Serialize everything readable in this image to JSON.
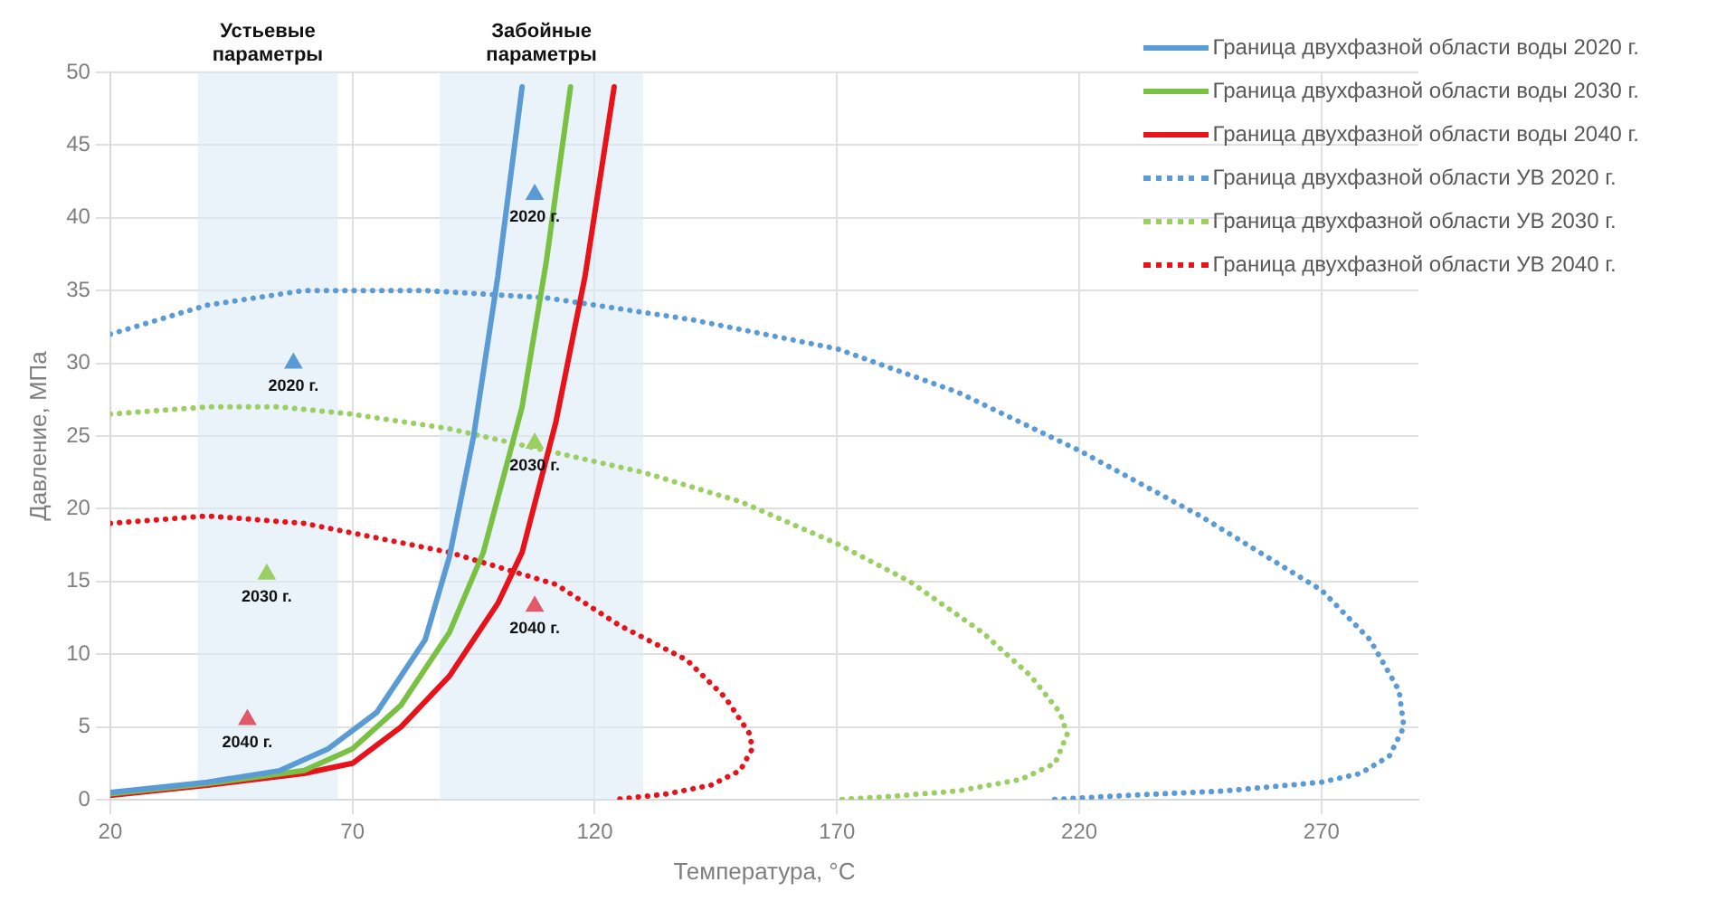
{
  "chart_data": {
    "type": "line",
    "xlabel": "Температура, °С",
    "ylabel": "Давление, МПа",
    "xlim": [
      20,
      290
    ],
    "xticks": [
      20,
      70,
      120,
      170,
      220,
      270
    ],
    "ylim": [
      0,
      50
    ],
    "yticks": [
      0,
      5,
      10,
      15,
      20,
      25,
      30,
      35,
      40,
      45,
      50
    ],
    "grid": true,
    "legend": "top right",
    "bands": [
      {
        "axis": "x",
        "from": 38,
        "to": 67,
        "label": "Устьевые параметры",
        "color": "#deebf7"
      },
      {
        "axis": "x",
        "from": 88,
        "to": 130,
        "label": "Забойные параметры",
        "color": "#deebf7"
      }
    ],
    "series": [
      {
        "name": "Граница двухфазной области воды 2020 г.",
        "color": "#5b9bd5",
        "line_style": "solid",
        "x": [
          20,
          40,
          55,
          65,
          75,
          85,
          90,
          95,
          100,
          105
        ],
        "values": [
          0.5,
          1.2,
          2,
          3.5,
          6,
          11,
          16.7,
          25,
          36,
          49
        ]
      },
      {
        "name": "Граница двухфазной области воды 2030 г.",
        "color": "#7ac143",
        "line_style": "solid",
        "x": [
          20,
          40,
          60,
          70,
          80,
          90,
          97,
          105,
          110,
          115
        ],
        "values": [
          0.4,
          1.1,
          2,
          3.5,
          6.5,
          11.5,
          17,
          27,
          37,
          49
        ]
      },
      {
        "name": "Граница двухфазной области воды 2040 г.",
        "color": "#e8121b",
        "line_style": "solid",
        "x": [
          20,
          40,
          60,
          70,
          80,
          90,
          100,
          105,
          112,
          118,
          124
        ],
        "values": [
          0.3,
          1,
          1.8,
          2.5,
          5,
          8.5,
          13.5,
          17,
          26,
          36,
          49
        ]
      },
      {
        "name": "Граница двухфазной области УВ 2020 г.",
        "color": "#5b9bd5",
        "line_style": "dotted",
        "x": [
          20,
          40,
          60,
          85,
          110,
          140,
          170,
          195,
          220,
          245,
          270,
          280,
          286,
          287,
          284,
          278,
          270,
          250,
          230,
          214
        ],
        "values": [
          32,
          34,
          35,
          35,
          34.5,
          33,
          31,
          28,
          24,
          19.5,
          14.4,
          11,
          7.5,
          5,
          3,
          1.8,
          1.2,
          0.6,
          0.3,
          0
        ]
      },
      {
        "name": "Граница двухфазной области УВ 2030 г.",
        "color": "#9bcf63",
        "line_style": "dotted",
        "x": [
          20,
          40,
          55,
          70,
          90,
          110,
          130,
          150,
          170,
          185,
          200,
          210,
          216,
          217.5,
          215,
          208,
          195,
          180,
          170
        ],
        "values": [
          26.5,
          27,
          27,
          26.5,
          25.5,
          24,
          22.5,
          20.5,
          17.6,
          15,
          11.5,
          8.5,
          6,
          4.5,
          2.5,
          1.4,
          0.6,
          0.2,
          0
        ]
      },
      {
        "name": "Граница двухфазной области УВ 2040 г.",
        "color": "#e8121b",
        "line_style": "dotted",
        "x": [
          20,
          40,
          60,
          75,
          90,
          100,
          112,
          125,
          139,
          147,
          152,
          152.5,
          150,
          144,
          135,
          124
        ],
        "values": [
          19,
          19.5,
          19,
          18,
          17,
          16,
          14.8,
          12,
          9.6,
          7,
          4.5,
          3.5,
          2,
          1,
          0.4,
          0
        ]
      },
      {
        "type": "scatter",
        "color": "#5b9bd5",
        "marker": "triangle",
        "x": [
          57.8,
          107.6
        ],
        "values": [
          30,
          41.6
        ]
      },
      {
        "type": "scatter",
        "color": "#9bcf63",
        "marker": "triangle",
        "x": [
          52.3,
          107.6
        ],
        "values": [
          15.5,
          24.5
        ]
      },
      {
        "type": "scatter",
        "color": "#e05a6a",
        "marker": "triangle",
        "x": [
          48.3,
          107.6
        ],
        "values": [
          5.5,
          13.3
        ]
      }
    ],
    "annotations": [
      {
        "text": "2020 г.",
        "x": 57.8,
        "y": 30
      },
      {
        "text": "2030 г.",
        "x": 52.3,
        "y": 15.5
      },
      {
        "text": "2040 г.",
        "x": 48.3,
        "y": 5.5
      },
      {
        "text": "2020 г.",
        "x": 107.6,
        "y": 41.6
      },
      {
        "text": "2030 г.",
        "x": 107.6,
        "y": 24.5
      },
      {
        "text": "2040 г.",
        "x": 107.6,
        "y": 13.3
      }
    ]
  }
}
